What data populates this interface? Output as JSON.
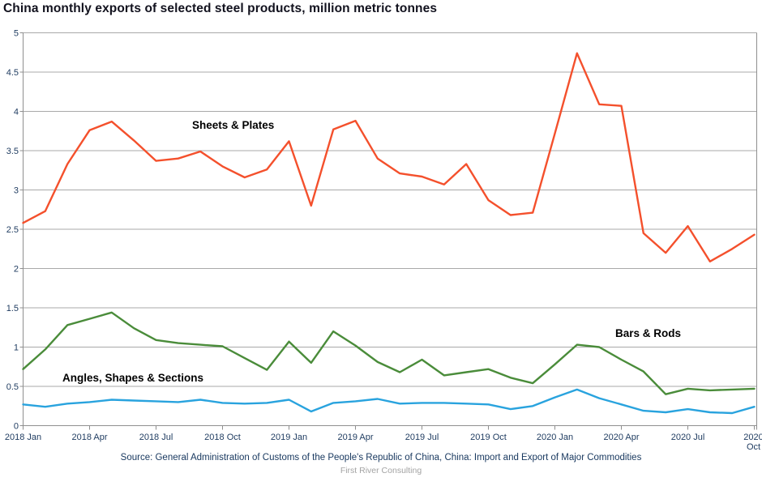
{
  "page": {
    "title": "China monthly exports of selected steel products, million metric tonnes"
  },
  "chart_data": {
    "type": "line",
    "title": "China monthly exports of selected steel products, million metric tonnes",
    "unit": "million metric tonnes",
    "grid": "horizontal",
    "legend_position": "inline-labels-on-chart",
    "ylim": [
      0,
      5
    ],
    "y_ticks": [
      "0",
      "0.5",
      "1",
      "1.5",
      "2",
      "2.5",
      "3",
      "3.5",
      "4",
      "4.5",
      "5"
    ],
    "x_tick_every": 3,
    "x_tick_labels": [
      "2018 Jan",
      "2018 Apr",
      "2018 Jul",
      "2018 Oct",
      "2019 Jan",
      "2019 Apr",
      "2019 Jul",
      "2019 Oct",
      "2020 Jan",
      "2020 Apr",
      "2020 Jul",
      "2020 Oct"
    ],
    "categories": [
      "2018 Jan",
      "2018 Feb",
      "2018 Mar",
      "2018 Apr",
      "2018 May",
      "2018 Jun",
      "2018 Jul",
      "2018 Aug",
      "2018 Sep",
      "2018 Oct",
      "2018 Nov",
      "2018 Dec",
      "2019 Jan",
      "2019 Feb",
      "2019 Mar",
      "2019 Apr",
      "2019 May",
      "2019 Jun",
      "2019 Jul",
      "2019 Aug",
      "2019 Sep",
      "2019 Oct",
      "2019 Nov",
      "2019 Dec",
      "2020 Jan",
      "2020 Feb",
      "2020 Mar",
      "2020 Apr",
      "2020 May",
      "2020 Jun",
      "2020 Jul",
      "2020 Aug",
      "2020 Sep",
      "2020 Oct"
    ],
    "series": [
      {
        "name": "Sheets & Plates",
        "color": "#f4502c",
        "values": [
          2.58,
          2.73,
          3.33,
          3.76,
          3.87,
          3.63,
          3.37,
          3.4,
          3.49,
          3.3,
          3.16,
          3.26,
          3.62,
          2.8,
          3.77,
          3.88,
          3.4,
          3.21,
          3.17,
          3.07,
          3.33,
          2.87,
          2.68,
          2.71,
          3.72,
          4.74,
          4.09,
          4.07,
          2.45,
          2.2,
          2.54,
          2.09,
          2.25,
          2.43
        ]
      },
      {
        "name": "Bars & Rods",
        "color": "#4a8c3a",
        "values": [
          0.72,
          0.97,
          1.28,
          1.36,
          1.44,
          1.24,
          1.09,
          1.05,
          1.03,
          1.01,
          0.86,
          0.71,
          1.07,
          0.8,
          1.2,
          1.02,
          0.81,
          0.68,
          0.84,
          0.64,
          0.68,
          0.72,
          0.61,
          0.54,
          0.78,
          1.03,
          1.0,
          0.84,
          0.69,
          0.4,
          0.47,
          0.45,
          0.46,
          0.47
        ]
      },
      {
        "name": "Angles, Shapes & Sections",
        "color": "#29a3de",
        "values": [
          0.27,
          0.24,
          0.28,
          0.3,
          0.33,
          0.32,
          0.31,
          0.3,
          0.33,
          0.29,
          0.28,
          0.29,
          0.33,
          0.18,
          0.29,
          0.31,
          0.34,
          0.28,
          0.29,
          0.29,
          0.28,
          0.27,
          0.21,
          0.25,
          0.36,
          0.46,
          0.35,
          0.27,
          0.19,
          0.17,
          0.21,
          0.17,
          0.16,
          0.24
        ]
      }
    ],
    "colors": {
      "gridline": "#a9a9a9",
      "axis_border": "#8f8f8f",
      "tick_label": "#1d3a5f"
    }
  },
  "footer": {
    "source": "Source: General Administration of Customs of the People's Republic of China, China: Import and Export of Major Commodities",
    "credit": "First River Consulting"
  }
}
